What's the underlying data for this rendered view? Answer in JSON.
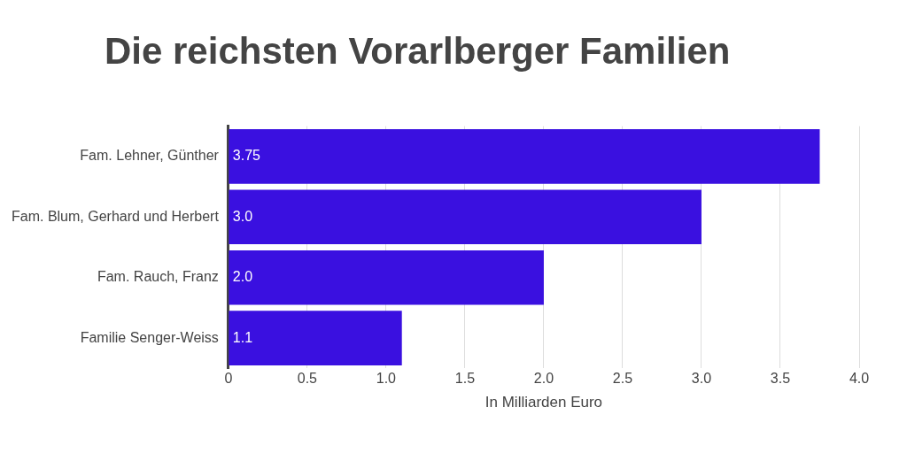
{
  "chart_data": {
    "type": "bar",
    "orientation": "horizontal",
    "title": "Die reichsten Vorarlberger Familien",
    "xlabel": "In Milliarden Euro",
    "categories": [
      "Fam. Lehner, Günther",
      "Fam. Blum, Gerhard und Herbert",
      "Fam. Rauch, Franz",
      "Familie Senger-Weiss"
    ],
    "values": [
      3.75,
      3.0,
      2.0,
      1.1
    ],
    "color": "#3a10e0",
    "value_labels": [
      "3.75",
      "3.0",
      "2.0",
      "1.1"
    ],
    "xlim": [
      0,
      4
    ],
    "xticks": [
      0,
      {
        "value": 0.5,
        "label": "0.5"
      },
      {
        "value": 1,
        "label": "1.0"
      },
      {
        "value": 1.5,
        "label": "1.5"
      },
      {
        "value": 2,
        "label": "2.0"
      },
      {
        "value": 2.5,
        "label": "2.5"
      },
      {
        "value": 3,
        "label": "3.0"
      },
      {
        "value": 3.5,
        "label": "3.5"
      },
      {
        "value": 4,
        "label": "4.0"
      }
    ],
    "grid": "x"
  }
}
